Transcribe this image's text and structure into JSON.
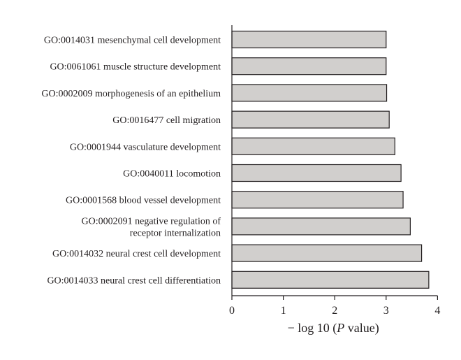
{
  "chart_data": {
    "type": "bar",
    "orientation": "horizontal",
    "categories": [
      [
        "GO:0014031 mesenchymal cell development"
      ],
      [
        "GO:0061061 muscle structure development"
      ],
      [
        "GO:0002009 morphogenesis of an epithelium"
      ],
      [
        "GO:0016477 cell migration"
      ],
      [
        "GO:0001944 vasculature development"
      ],
      [
        "GO:0040011 locomotion"
      ],
      [
        "GO:0001568 blood vessel development"
      ],
      [
        "GO:0002091 negative regulation of",
        "receptor internalization"
      ],
      [
        "GO:0014032 neural crest cell development"
      ],
      [
        "GO:0014033 neural crest cell differentiation"
      ]
    ],
    "values": [
      3.0,
      3.0,
      3.01,
      3.06,
      3.17,
      3.29,
      3.33,
      3.47,
      3.69,
      3.83
    ],
    "xlabel_prefix": "− log 10 (",
    "xlabel_italic": "P",
    "xlabel_suffix": " value)",
    "xlim": [
      0,
      4
    ],
    "xticks": [
      "0",
      "1",
      "2",
      "3",
      "4"
    ],
    "grid": false,
    "colors": {
      "bar_fill": "#d1cfcd",
      "bar_stroke": "#231f20",
      "text": "#231f20"
    }
  }
}
